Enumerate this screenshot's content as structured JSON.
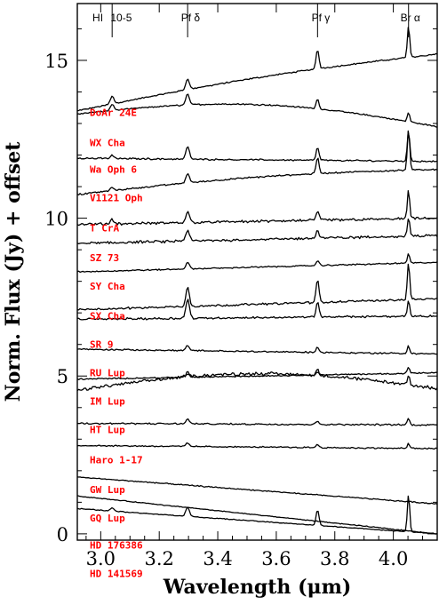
{
  "chart_data": {
    "type": "line",
    "xlabel": "Wavelength (μm)",
    "ylabel": "Norm. Flux (Jy) + offset",
    "xlim": [
      2.92,
      4.15
    ],
    "ylim": [
      -0.2,
      16.8
    ],
    "x_ticks": [
      {
        "value": 3.0,
        "label": "3.0"
      },
      {
        "value": 3.2,
        "label": "3.2"
      },
      {
        "value": 3.4,
        "label": "3.4"
      },
      {
        "value": 3.6,
        "label": "3.6"
      },
      {
        "value": 3.8,
        "label": "3.8"
      },
      {
        "value": 4.0,
        "label": "4.0"
      }
    ],
    "y_ticks": [
      {
        "value": 0,
        "label": "0"
      },
      {
        "value": 5,
        "label": "5"
      },
      {
        "value": 10,
        "label": "10"
      },
      {
        "value": 15,
        "label": "15"
      }
    ],
    "line_markers": [
      {
        "name": "HI 10-5",
        "x": 3.039
      },
      {
        "name": "Pf δ",
        "x": 3.297
      },
      {
        "name": "Pf γ",
        "x": 3.741
      },
      {
        "name": "Br α",
        "x": 4.052
      }
    ],
    "line_marker_labels": [
      {
        "text": "HI",
        "x": 2.99
      },
      {
        "text": "10-5",
        "x": 3.07
      },
      {
        "text": "Pf δ",
        "x": 3.307
      },
      {
        "text": "Pf γ",
        "x": 3.752
      },
      {
        "text": "Br α",
        "x": 4.058
      }
    ],
    "series": [
      {
        "name": "DoAr 24E",
        "label_y": 13.35,
        "y_start": 13.4,
        "y_end": 15.2,
        "shape": "rising",
        "lines": [
          0.25,
          0.35,
          0.6,
          1.0
        ],
        "noise": 0.05
      },
      {
        "name": "WX Cha",
        "label_y": 12.4,
        "y_start": 13.3,
        "y_end": 12.9,
        "shape": "convex",
        "lines": [
          0.2,
          0.35,
          0.3,
          0.3
        ],
        "noise": 0.05
      },
      {
        "name": "Wa Oph 6",
        "label_y": 11.55,
        "y_start": 11.9,
        "y_end": 11.8,
        "shape": "flat",
        "lines": [
          0.1,
          0.4,
          0.4,
          1.0
        ],
        "noise": 0.06
      },
      {
        "name": "V1121 Oph",
        "label_y": 10.65,
        "y_start": 10.75,
        "y_end": 11.55,
        "shape": "rising",
        "lines": [
          0.1,
          0.3,
          0.5,
          1.3
        ],
        "noise": 0.06
      },
      {
        "name": "T CrA",
        "label_y": 9.7,
        "y_start": 9.8,
        "y_end": 10.0,
        "shape": "flat",
        "lines": [
          0.15,
          0.35,
          0.3,
          0.9
        ],
        "noise": 0.1
      },
      {
        "name": "SZ 73",
        "label_y": 8.75,
        "y_start": 9.2,
        "y_end": 9.45,
        "shape": "flat",
        "lines": [
          0.0,
          0.35,
          0.25,
          0.6
        ],
        "noise": 0.1
      },
      {
        "name": "SY Cha",
        "label_y": 7.85,
        "y_start": 8.3,
        "y_end": 8.6,
        "shape": "flat",
        "lines": [
          0.0,
          0.2,
          0.15,
          0.3
        ],
        "noise": 0.05
      },
      {
        "name": "SX Cha",
        "label_y": 6.9,
        "y_start": 7.1,
        "y_end": 7.45,
        "shape": "flat",
        "lines": [
          0.0,
          0.6,
          0.7,
          1.2
        ],
        "noise": 0.08
      },
      {
        "name": "SR 9",
        "label_y": 6.0,
        "y_start": 6.8,
        "y_end": 6.9,
        "shape": "flat",
        "lines": [
          0.0,
          0.6,
          0.5,
          0.5
        ],
        "noise": 0.08
      },
      {
        "name": "RU Lup",
        "label_y": 5.1,
        "y_start": 5.85,
        "y_end": 5.7,
        "shape": "flat",
        "lines": [
          0.0,
          0.15,
          0.15,
          0.25
        ],
        "noise": 0.06
      },
      {
        "name": "IM Lup",
        "label_y": 4.2,
        "y_start": 4.9,
        "y_end": 5.1,
        "shape": "flat",
        "lines": [
          0.0,
          0.1,
          0.1,
          0.2
        ],
        "noise": 0.05
      },
      {
        "name": "HT Lup",
        "label_y": 3.3,
        "y_start": 4.55,
        "y_end": 4.6,
        "shape": "convex",
        "lines": [
          0.0,
          0.15,
          0.2,
          0.3
        ],
        "noise": 0.12
      },
      {
        "name": "Haro 1-17",
        "label_y": 2.35,
        "y_start": 3.5,
        "y_end": 3.45,
        "shape": "flat",
        "lines": [
          0.0,
          0.15,
          0.1,
          0.2
        ],
        "noise": 0.06
      },
      {
        "name": "GW Lup",
        "label_y": 1.4,
        "y_start": 2.8,
        "y_end": 2.7,
        "shape": "flat",
        "lines": [
          0.0,
          0.1,
          0.1,
          0.15
        ],
        "noise": 0.05
      },
      {
        "name": "GQ Lup",
        "label_y": 0.5,
        "y_start": 1.8,
        "y_end": 0.95,
        "shape": "falling",
        "lines": [
          0.0,
          0.0,
          0.0,
          0.0
        ],
        "noise": 0.04
      },
      {
        "name": "HD 176386",
        "label_y": -0.35,
        "y_start": 1.2,
        "y_end": 0.0,
        "shape": "falling",
        "lines": [
          0.0,
          0.0,
          0.0,
          0.0
        ],
        "noise": 0.03
      },
      {
        "name": "HD 141569",
        "label_y": -1.25,
        "y_start": 0.8,
        "y_end": 0.0,
        "shape": "falling",
        "lines": [
          0.1,
          0.3,
          0.5,
          1.2
        ],
        "noise": 0.03
      }
    ]
  }
}
